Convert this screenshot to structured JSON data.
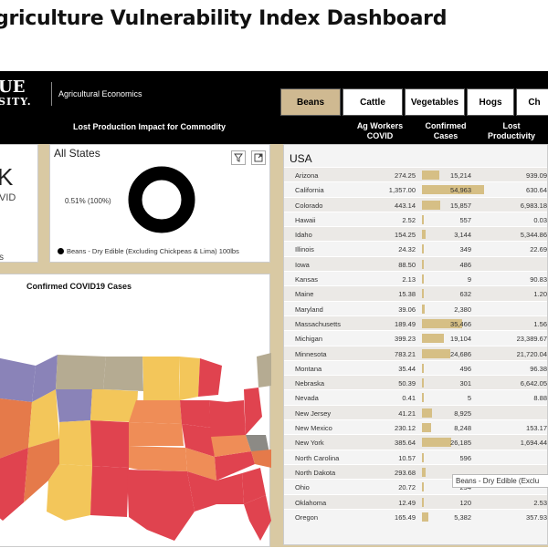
{
  "title": "griculture Vulnerability Index Dashboard",
  "logo": {
    "line1": "UE",
    "line2": "SITY.",
    "dept": "Agricultural Economics"
  },
  "tabs": [
    {
      "label": "Beans",
      "active": true
    },
    {
      "label": "Cattle",
      "active": false
    },
    {
      "label": "Vegetables",
      "active": false
    },
    {
      "label": "Hogs",
      "active": false
    },
    {
      "label": "Ch",
      "active": false
    }
  ],
  "lost_title": "Lost Production Impact for Commodity",
  "columns": {
    "workers": "Ag Workers COVID",
    "cases": "Confirmed Cases",
    "lost": "Lost Productivity"
  },
  "kpi": {
    "big": "K",
    "label": "VID",
    "small": "s"
  },
  "donut": {
    "title": "All States",
    "pct": "0.51% (100%)",
    "legend": "Beans - Dry Edible (Excluding Chickpeas & Lima) 100lbs",
    "color": "#000000"
  },
  "map": {
    "title": "Confirmed COVID19 Cases"
  },
  "table": {
    "region": "USA",
    "rows": [
      {
        "state": "Arizona",
        "workers": "274.25",
        "cases": "15,214",
        "lost": "939.09",
        "bar": 15214
      },
      {
        "state": "California",
        "workers": "1,357.00",
        "cases": "54,963",
        "lost": "630.64",
        "bar": 54963
      },
      {
        "state": "Colorado",
        "workers": "443.14",
        "cases": "15,857",
        "lost": "6,983.18",
        "bar": 15857
      },
      {
        "state": "Hawaii",
        "workers": "2.52",
        "cases": "557",
        "lost": "0.03",
        "bar": 557
      },
      {
        "state": "Idaho",
        "workers": "154.25",
        "cases": "3,144",
        "lost": "5,344.86",
        "bar": 3144
      },
      {
        "state": "Illinois",
        "workers": "24.32",
        "cases": "349",
        "lost": "22.69",
        "bar": 349
      },
      {
        "state": "Iowa",
        "workers": "88.50",
        "cases": "486",
        "lost": "",
        "bar": 486
      },
      {
        "state": "Kansas",
        "workers": "2.13",
        "cases": "9",
        "lost": "90.83",
        "bar": 9
      },
      {
        "state": "Maine",
        "workers": "15.38",
        "cases": "632",
        "lost": "1.20",
        "bar": 632
      },
      {
        "state": "Maryland",
        "workers": "39.06",
        "cases": "2,380",
        "lost": "",
        "bar": 2380
      },
      {
        "state": "Massachusetts",
        "workers": "189.49",
        "cases": "35,466",
        "lost": "1.56",
        "bar": 35466
      },
      {
        "state": "Michigan",
        "workers": "399.23",
        "cases": "19,104",
        "lost": "23,389.67",
        "bar": 19104
      },
      {
        "state": "Minnesota",
        "workers": "783.21",
        "cases": "24,686",
        "lost": "21,720.04",
        "bar": 24686
      },
      {
        "state": "Montana",
        "workers": "35.44",
        "cases": "496",
        "lost": "96.38",
        "bar": 496
      },
      {
        "state": "Nebraska",
        "workers": "50.39",
        "cases": "301",
        "lost": "6,642.05",
        "bar": 301
      },
      {
        "state": "Nevada",
        "workers": "0.41",
        "cases": "5",
        "lost": "8.88",
        "bar": 5
      },
      {
        "state": "New Jersey",
        "workers": "41.21",
        "cases": "8,925",
        "lost": "",
        "bar": 8925
      },
      {
        "state": "New Mexico",
        "workers": "230.12",
        "cases": "8,248",
        "lost": "153.17",
        "bar": 8248
      },
      {
        "state": "New York",
        "workers": "385.64",
        "cases": "26,185",
        "lost": "1,694.44",
        "bar": 26185
      },
      {
        "state": "North Carolina",
        "workers": "10.57",
        "cases": "596",
        "lost": "",
        "bar": 596
      },
      {
        "state": "North Dakota",
        "workers": "293.68",
        "cases": "",
        "lost": "",
        "bar": 3000
      },
      {
        "state": "Ohio",
        "workers": "20.72",
        "cases": "294",
        "lost": "",
        "bar": 294
      },
      {
        "state": "Oklahoma",
        "workers": "12.49",
        "cases": "120",
        "lost": "2.53",
        "bar": 120
      },
      {
        "state": "Oregon",
        "workers": "165.49",
        "cases": "5,382",
        "lost": "357.93",
        "bar": 5382
      }
    ]
  },
  "tooltip": "Beans - Dry Edible (Exclu",
  "colors": {
    "accent": "#cfb991",
    "bar": "#d6bf85",
    "high": "#e0434f",
    "mid": "#ef8d57",
    "low": "#f3c65a",
    "purple": "#8a83b8"
  }
}
